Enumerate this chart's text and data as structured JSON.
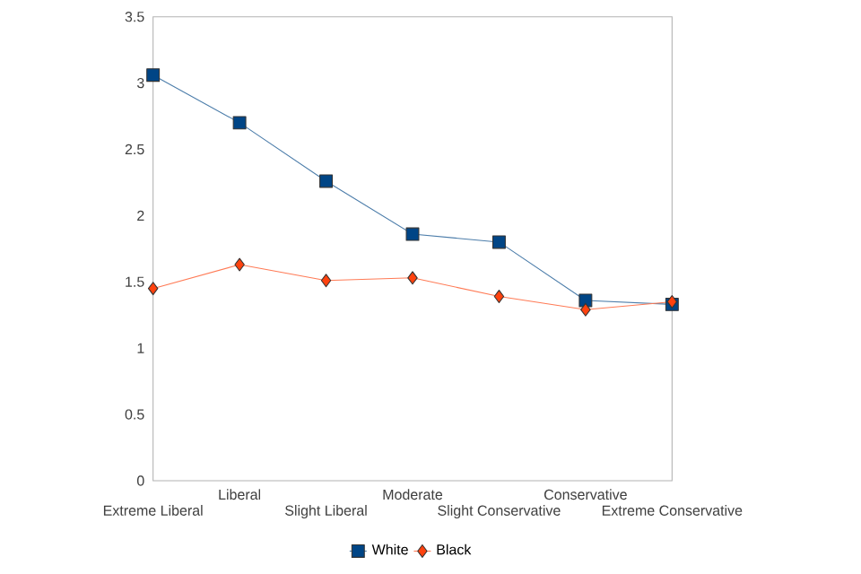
{
  "chart_data": {
    "type": "line",
    "categories": [
      "Extreme Liberal",
      "Liberal",
      "Slight Liberal",
      "Moderate",
      "Slight Conservative",
      "Conservative",
      "Extreme Conservative"
    ],
    "series": [
      {
        "name": "White",
        "color": "#004586",
        "marker": "square",
        "values": [
          3.06,
          2.7,
          2.26,
          1.86,
          1.8,
          1.36,
          1.33
        ]
      },
      {
        "name": "Black",
        "color": "#ff420e",
        "marker": "diamond",
        "values": [
          1.45,
          1.63,
          1.51,
          1.53,
          1.39,
          1.29,
          1.35
        ]
      }
    ],
    "ylim": [
      0,
      3.5
    ],
    "yticks": [
      0,
      0.5,
      1,
      1.5,
      2,
      2.5,
      3,
      3.5
    ],
    "grid": false,
    "legend": "bottom"
  }
}
